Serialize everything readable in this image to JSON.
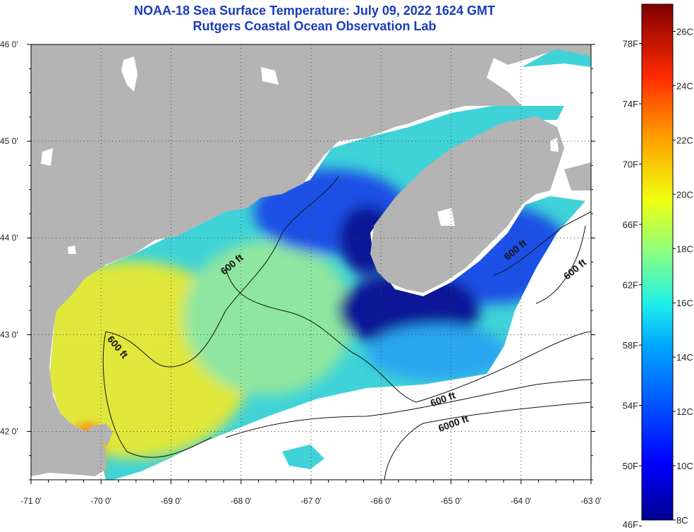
{
  "title": {
    "line1": "NOAA-18 Sea Surface Temperature:  July 09, 2022 1624 GMT",
    "line2": "Rutgers Coastal Ocean Observation Lab"
  },
  "axes": {
    "lon_ticks": [
      {
        "value": -71,
        "label": "-71 0'"
      },
      {
        "value": -70,
        "label": "-70 0'"
      },
      {
        "value": -69,
        "label": "-69 0'"
      },
      {
        "value": -68,
        "label": "-68 0'"
      },
      {
        "value": -67,
        "label": "-67 0'"
      },
      {
        "value": -66,
        "label": "-66 0'"
      },
      {
        "value": -65,
        "label": "-65 0'"
      },
      {
        "value": -64,
        "label": "-64 0'"
      },
      {
        "value": -63,
        "label": "-63 0'"
      }
    ],
    "lat_ticks": [
      {
        "value": 46,
        "label": "46 0'"
      },
      {
        "value": 45,
        "label": "45 0'"
      },
      {
        "value": 44,
        "label": "44 0'"
      },
      {
        "value": 43,
        "label": "43 0'"
      },
      {
        "value": 42,
        "label": "42 0'"
      }
    ],
    "lon_range": [
      -71,
      -63
    ],
    "lat_range": [
      41.5,
      46
    ]
  },
  "contour_labels": [
    {
      "text": "600 ft",
      "lon": -68.1,
      "lat": 43.7
    },
    {
      "text": "600 ft",
      "lon": -69.8,
      "lat": 42.85
    },
    {
      "text": "600 ft",
      "lon": -65.1,
      "lat": 42.3
    },
    {
      "text": "6000 ft",
      "lon": -64.95,
      "lat": 42.05
    },
    {
      "text": "600 ft",
      "lon": -64.05,
      "lat": 43.85
    },
    {
      "text": "600 ft",
      "lon": -63.2,
      "lat": 43.65
    }
  ],
  "colorbar": {
    "min_c": 8,
    "max_c": 27,
    "fahrenheit_labels": [
      "78F",
      "74F",
      "70F",
      "66F",
      "62F",
      "58F",
      "54F",
      "50F",
      "46F"
    ],
    "fahrenheit_values": [
      78,
      74,
      70,
      66,
      62,
      58,
      54,
      50,
      46
    ],
    "celsius_labels": [
      "26C",
      "24C",
      "22C",
      "20C",
      "18C",
      "16C",
      "14C",
      "12C",
      "10C",
      "8C"
    ],
    "celsius_values": [
      26,
      24,
      22,
      20,
      18,
      16,
      14,
      12,
      10,
      8
    ]
  },
  "colors": {
    "land": "#b4b4b4",
    "title": "#1a3bbd",
    "warm": "#e0e83a",
    "mid": "#3fd3d8",
    "cool": "#1e4fe6",
    "cold": "#0a1596"
  }
}
